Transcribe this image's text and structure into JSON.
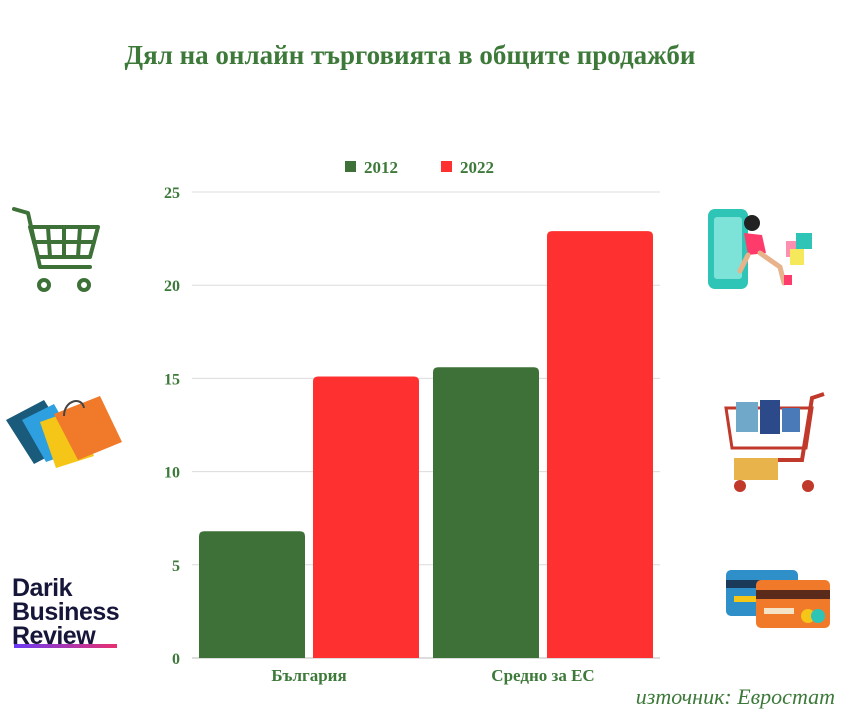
{
  "title": "Дял на онлайн търговията в общите продажби",
  "source": "източник: Евростат",
  "logo": {
    "line1": "Darik",
    "line2": "Business",
    "line3": "Review"
  },
  "colors": {
    "series2012": "#3d7137",
    "series2022": "#ff3030",
    "text": "#3d7a3a"
  },
  "icons": [
    "shopping-cart-icon",
    "shopping-bags-icon",
    "online-shopper-phone-icon",
    "loaded-cart-icon",
    "credit-cards-icon"
  ],
  "chart_data": {
    "type": "bar",
    "title": "Дял на онлайн търговията в общите продажби",
    "categories": [
      "България",
      "Средно за ЕС"
    ],
    "series": [
      {
        "name": "2012",
        "values": [
          6.8,
          15.6
        ]
      },
      {
        "name": "2022",
        "values": [
          15.1,
          22.9
        ]
      }
    ],
    "yticks": [
      0,
      5,
      10,
      15,
      20,
      25
    ],
    "ylim": [
      0,
      25
    ],
    "grid": true,
    "legend": "top-center"
  }
}
